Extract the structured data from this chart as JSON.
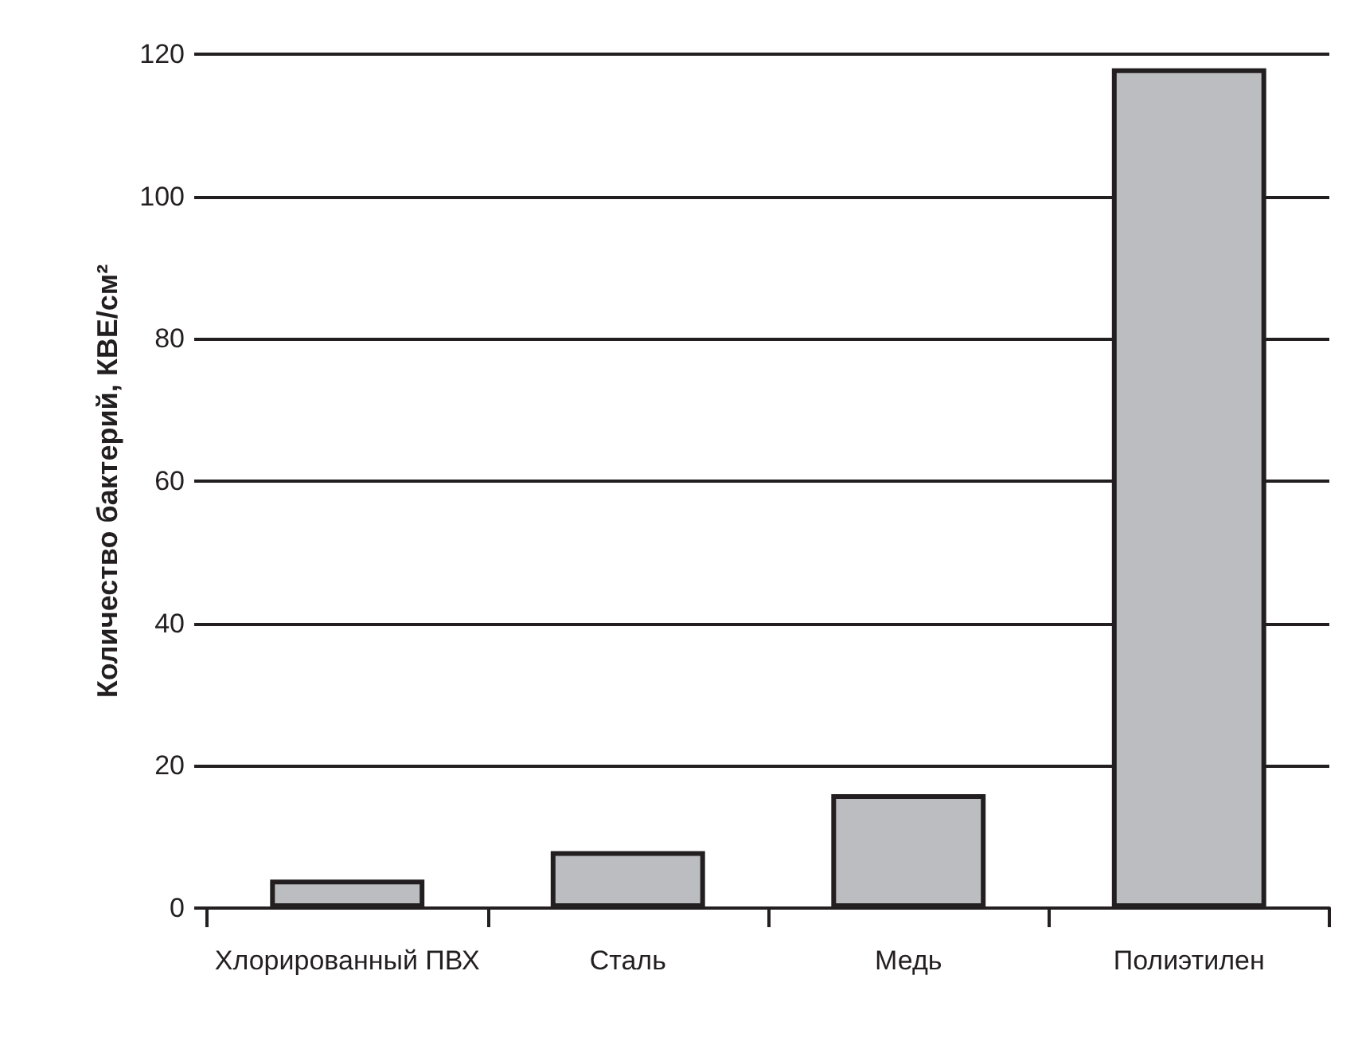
{
  "chart_data": {
    "type": "bar",
    "ylabel": "Количество бактерий, КВЕ/см²",
    "categories": [
      "Хлорированный ПВХ",
      "Сталь",
      "Медь",
      "Полиэтилен"
    ],
    "values": [
      4,
      8,
      16,
      118
    ],
    "color": "#bcbdc1",
    "ylim": [
      0,
      120
    ],
    "yticks": [
      0,
      20,
      40,
      60,
      80,
      100,
      120
    ],
    "grid": "y"
  }
}
